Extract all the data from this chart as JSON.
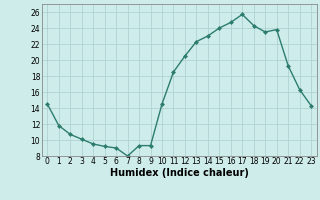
{
  "x": [
    0,
    1,
    2,
    3,
    4,
    5,
    6,
    7,
    8,
    9,
    10,
    11,
    12,
    13,
    14,
    15,
    16,
    17,
    18,
    19,
    20,
    21,
    22,
    23
  ],
  "y": [
    14.5,
    11.8,
    10.7,
    10.1,
    9.5,
    9.2,
    9.0,
    8.0,
    9.3,
    9.3,
    14.5,
    18.5,
    20.5,
    22.3,
    23.0,
    24.0,
    24.7,
    25.7,
    24.3,
    23.5,
    23.8,
    19.3,
    16.3,
    14.3
  ],
  "line_color": "#2d7d6f",
  "marker": "D",
  "marker_size": 2.0,
  "linewidth": 1.0,
  "xlabel": "Humidex (Indice chaleur)",
  "ylabel": "",
  "title": "",
  "xlim": [
    -0.5,
    23.5
  ],
  "ylim": [
    8,
    27
  ],
  "yticks": [
    8,
    10,
    12,
    14,
    16,
    18,
    20,
    22,
    24,
    26
  ],
  "xticks": [
    0,
    1,
    2,
    3,
    4,
    5,
    6,
    7,
    8,
    9,
    10,
    11,
    12,
    13,
    14,
    15,
    16,
    17,
    18,
    19,
    20,
    21,
    22,
    23
  ],
  "bg_color": "#ceecea",
  "grid_color": "#aacfcc",
  "tick_fontsize": 5.5,
  "xlabel_fontsize": 7.0
}
